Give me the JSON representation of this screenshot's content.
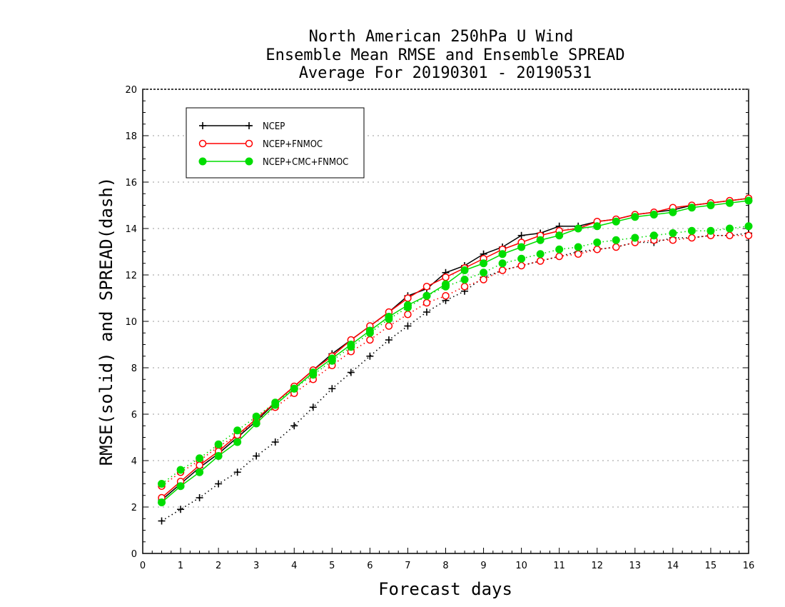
{
  "chart_data": {
    "type": "line",
    "title_lines": [
      "North American 250hPa U Wind",
      "Ensemble Mean RMSE and Ensemble SPREAD",
      "Average For 20190301 - 20190531"
    ],
    "xlabel": "Forecast days",
    "ylabel": "RMSE(solid) and SPREAD(dash)",
    "xlim": [
      0,
      16
    ],
    "ylim": [
      0,
      20
    ],
    "xticks": [
      0,
      1,
      2,
      3,
      4,
      5,
      6,
      7,
      8,
      9,
      10,
      11,
      12,
      13,
      14,
      15,
      16
    ],
    "yticks": [
      0,
      2,
      4,
      6,
      8,
      10,
      12,
      14,
      16,
      18,
      20
    ],
    "grid": true,
    "legend_position": "top-left",
    "x": [
      0.5,
      1,
      1.5,
      2,
      2.5,
      3,
      3.5,
      4,
      4.5,
      5,
      5.5,
      6,
      6.5,
      7,
      7.5,
      8,
      8.5,
      9,
      9.5,
      10,
      10.5,
      11,
      11.5,
      12,
      12.5,
      13,
      13.5,
      14,
      14.5,
      15,
      15.5,
      16
    ],
    "series": [
      {
        "name": "NCEP",
        "color": "#000000",
        "marker": "plus",
        "rmse": [
          2.3,
          3.0,
          3.7,
          4.3,
          5.0,
          5.7,
          6.5,
          7.2,
          7.9,
          8.6,
          9.2,
          9.8,
          10.4,
          11.1,
          11.4,
          12.1,
          12.4,
          12.9,
          13.2,
          13.7,
          13.8,
          14.1,
          14.1,
          14.3,
          14.4,
          14.6,
          14.7,
          14.8,
          15.0,
          15.1,
          15.2,
          15.3
        ],
        "spread": [
          1.4,
          1.9,
          2.4,
          3.0,
          3.5,
          4.2,
          4.8,
          5.5,
          6.3,
          7.1,
          7.8,
          8.5,
          9.2,
          9.8,
          10.4,
          10.9,
          11.3,
          11.9,
          12.2,
          12.4,
          12.6,
          12.8,
          13.0,
          13.1,
          13.2,
          13.4,
          13.4,
          13.6,
          13.6,
          13.7,
          13.7,
          13.8
        ]
      },
      {
        "name": "NCEP+FNMOC",
        "color": "#ff0000",
        "marker": "open-circle",
        "rmse": [
          2.4,
          3.1,
          3.8,
          4.4,
          5.1,
          5.8,
          6.5,
          7.2,
          7.9,
          8.5,
          9.2,
          9.8,
          10.4,
          11.0,
          11.5,
          11.9,
          12.3,
          12.7,
          13.1,
          13.4,
          13.7,
          13.9,
          14.0,
          14.3,
          14.4,
          14.6,
          14.7,
          14.9,
          15.0,
          15.1,
          15.2,
          15.3
        ],
        "spread": [
          2.9,
          3.5,
          4.0,
          4.6,
          5.1,
          5.7,
          6.3,
          6.9,
          7.5,
          8.1,
          8.7,
          9.2,
          9.8,
          10.3,
          10.8,
          11.1,
          11.5,
          11.8,
          12.2,
          12.4,
          12.6,
          12.8,
          12.9,
          13.1,
          13.2,
          13.4,
          13.5,
          13.5,
          13.6,
          13.7,
          13.7,
          13.7
        ]
      },
      {
        "name": "NCEP+CMC+FNMOC",
        "color": "#00dd00",
        "marker": "filled-circle",
        "rmse": [
          2.2,
          2.9,
          3.5,
          4.2,
          4.8,
          5.6,
          6.4,
          7.1,
          7.8,
          8.4,
          9.0,
          9.6,
          10.2,
          10.7,
          11.1,
          11.6,
          12.2,
          12.5,
          12.9,
          13.2,
          13.5,
          13.7,
          14.0,
          14.1,
          14.3,
          14.5,
          14.6,
          14.7,
          14.9,
          15.0,
          15.1,
          15.2
        ],
        "spread": [
          3.0,
          3.6,
          4.1,
          4.7,
          5.3,
          5.9,
          6.5,
          7.1,
          7.7,
          8.3,
          8.9,
          9.5,
          10.1,
          10.6,
          11.1,
          11.5,
          11.8,
          12.1,
          12.5,
          12.7,
          12.9,
          13.1,
          13.2,
          13.4,
          13.5,
          13.6,
          13.7,
          13.8,
          13.9,
          13.9,
          14.0,
          14.1
        ]
      }
    ]
  }
}
